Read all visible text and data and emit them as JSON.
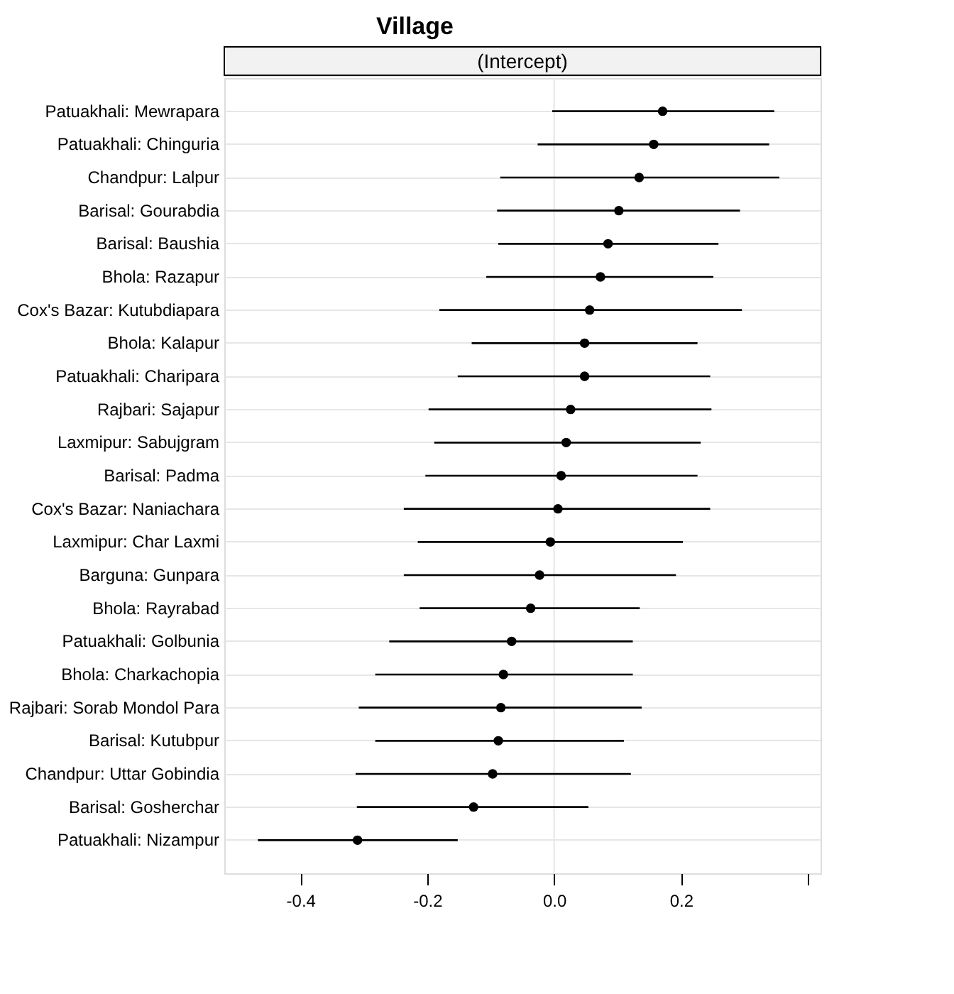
{
  "chart_data": {
    "type": "scatter",
    "title": "Village",
    "subtitle": "(Intercept)",
    "categories": [
      "Patuakhali: Mewrapara",
      "Patuakhali: Chinguria",
      "Chandpur: Lalpur",
      "Barisal: Gourabdia",
      "Barisal: Baushia",
      "Bhola: Razapur",
      "Cox's Bazar: Kutubdiapara",
      "Bhola: Kalapur",
      "Patuakhali: Charipara",
      "Rajbari: Sajapur",
      "Laxmipur: Sabujgram",
      "Barisal: Padma",
      "Cox's Bazar: Naniachara",
      "Laxmipur: Char Laxmi",
      "Barguna: Gunpara",
      "Bhola: Rayrabad",
      "Patuakhali: Golbunia",
      "Bhola: Charkachopia",
      "Rajbari: Sorab Mondol Para",
      "Barisal: Kutubpur",
      "Chandpur: Uttar Gobindia",
      "Barisal: Gosherchar",
      "Patuakhali: Nizampur"
    ],
    "orientation": "horizontal",
    "series": [
      {
        "color": "#000000",
        "values": [
          0.171,
          0.157,
          0.134,
          0.102,
          0.085,
          0.073,
          0.056,
          0.048,
          0.048,
          0.026,
          0.019,
          0.011,
          0.006,
          -0.006,
          -0.023,
          -0.037,
          -0.067,
          -0.08,
          -0.084,
          -0.088,
          -0.097,
          -0.127,
          -0.31
        ],
        "errors": [
          [
            -0.003,
            0.347
          ],
          [
            -0.026,
            0.339
          ],
          [
            -0.085,
            0.355
          ],
          [
            -0.09,
            0.293
          ],
          [
            -0.088,
            0.259
          ],
          [
            -0.107,
            0.251
          ],
          [
            -0.181,
            0.296
          ],
          [
            -0.13,
            0.226
          ],
          [
            -0.152,
            0.246
          ],
          [
            -0.198,
            0.248
          ],
          [
            -0.189,
            0.231
          ],
          [
            -0.203,
            0.226
          ],
          [
            -0.237,
            0.246
          ],
          [
            -0.215,
            0.203
          ],
          [
            -0.237,
            0.192
          ],
          [
            -0.212,
            0.135
          ],
          [
            -0.26,
            0.124
          ],
          [
            -0.282,
            0.124
          ],
          [
            -0.308,
            0.138
          ],
          [
            -0.282,
            0.11
          ],
          [
            -0.313,
            0.121
          ],
          [
            -0.311,
            0.054
          ],
          [
            -0.467,
            -0.152
          ]
        ]
      }
    ],
    "xlim": [
      -0.52,
      0.42
    ],
    "xticks": [
      {
        "value": -0.4,
        "label": "-0.4"
      },
      {
        "value": -0.2,
        "label": "-0.2"
      },
      {
        "value": 0.0,
        "label": "0.0"
      },
      {
        "value": 0.2,
        "label": "0.2"
      },
      {
        "value": 0.4,
        "label": null
      }
    ],
    "marker": "circle",
    "grid": "y",
    "ref_lines": [
      {
        "axis": "x",
        "value": 0,
        "color": "#e6e6e6"
      }
    ]
  }
}
